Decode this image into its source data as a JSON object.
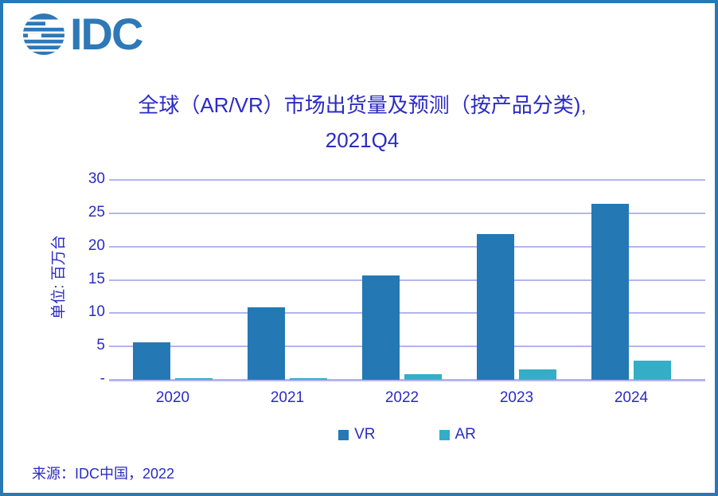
{
  "logo": {
    "text": "IDC",
    "globe_icon": "idc-striped-globe"
  },
  "title": {
    "line1": "全球（AR/VR）市场出货量及预测（按产品分类),",
    "line2": "2021Q4"
  },
  "chart_data": {
    "type": "bar",
    "title": "全球（AR/VR）市场出货量及预测（按产品分类), 2021Q4",
    "ylabel": "单位: 百万台",
    "xlabel": "",
    "categories": [
      "2020",
      "2021",
      "2022",
      "2023",
      "2024"
    ],
    "series": [
      {
        "name": "VR",
        "color": "#2478b4",
        "values": [
          5.6,
          10.9,
          15.7,
          21.9,
          26.4
        ]
      },
      {
        "name": "AR",
        "color": "#35adc6",
        "values": [
          0.3,
          0.3,
          0.8,
          1.6,
          2.9
        ]
      }
    ],
    "ylim": [
      0,
      30
    ],
    "yticks": {
      "values": [
        0,
        5,
        10,
        15,
        20,
        25,
        30
      ],
      "labels": [
        "-",
        "5",
        "10",
        "15",
        "20",
        "25",
        "30"
      ]
    },
    "grid": true,
    "legend_position": "bottom-center"
  },
  "source": {
    "label": "来源：IDC中国，2022"
  },
  "colors": {
    "border": "#2878b5",
    "logo_blue": "#2e78b8",
    "text_blue": "#2b2bc4",
    "gridline": "#b4b4f0",
    "vr_bar": "#2478b4",
    "ar_bar": "#35adc6"
  }
}
